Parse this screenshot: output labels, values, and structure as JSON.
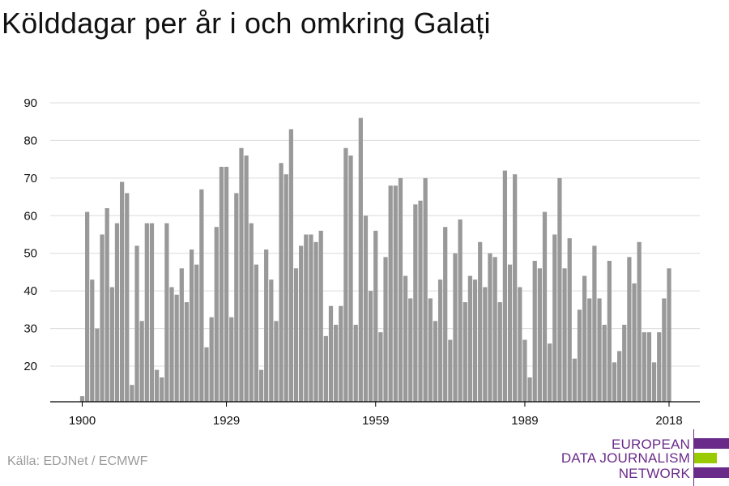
{
  "title": "Kölddagar per år i och omkring Galați",
  "source": "Källa: EDJNet / ECMWF",
  "logo": {
    "line1": "EUROPEAN",
    "line2": "DATA JOURNALISM",
    "line3": "NETWORK",
    "colors": {
      "purple": "#6a2a8a",
      "green": "#99cc00"
    }
  },
  "colors": {
    "bar": "#999999",
    "grid": "#dcdcdc",
    "axis": "#000000",
    "title": "#111111",
    "source": "#9b9b9b"
  },
  "chart_data": {
    "type": "bar",
    "title": "Kölddagar per år i och omkring Galați",
    "xlabel": "",
    "ylabel": "",
    "ylim": [
      12,
      90
    ],
    "yticks": [
      20,
      30,
      40,
      50,
      60,
      70,
      80,
      90
    ],
    "xticks": [
      1900,
      1929,
      1959,
      1989,
      2018
    ],
    "grid": true,
    "x": [
      1900,
      1901,
      1902,
      1903,
      1904,
      1905,
      1906,
      1907,
      1908,
      1909,
      1910,
      1911,
      1912,
      1913,
      1914,
      1915,
      1916,
      1917,
      1918,
      1919,
      1920,
      1921,
      1922,
      1923,
      1924,
      1925,
      1926,
      1927,
      1928,
      1929,
      1930,
      1931,
      1932,
      1933,
      1934,
      1935,
      1936,
      1937,
      1938,
      1939,
      1940,
      1941,
      1942,
      1943,
      1944,
      1945,
      1946,
      1947,
      1948,
      1949,
      1950,
      1951,
      1952,
      1953,
      1954,
      1955,
      1956,
      1957,
      1958,
      1959,
      1960,
      1961,
      1962,
      1963,
      1964,
      1965,
      1966,
      1967,
      1968,
      1969,
      1970,
      1971,
      1972,
      1973,
      1974,
      1975,
      1976,
      1977,
      1978,
      1979,
      1980,
      1981,
      1982,
      1983,
      1984,
      1985,
      1986,
      1987,
      1988,
      1989,
      1990,
      1991,
      1992,
      1993,
      1994,
      1995,
      1996,
      1997,
      1998,
      1999,
      2000,
      2001,
      2002,
      2003,
      2004,
      2005,
      2006,
      2007,
      2008,
      2009,
      2010,
      2011,
      2012,
      2013,
      2014,
      2015,
      2016,
      2017,
      2018
    ],
    "values": [
      12,
      61,
      43,
      30,
      55,
      62,
      41,
      58,
      69,
      66,
      15,
      52,
      32,
      58,
      58,
      19,
      17,
      58,
      41,
      39,
      46,
      37,
      51,
      47,
      67,
      25,
      33,
      57,
      73,
      73,
      33,
      66,
      78,
      76,
      58,
      47,
      19,
      51,
      43,
      32,
      74,
      71,
      83,
      46,
      52,
      55,
      55,
      53,
      56,
      28,
      36,
      31,
      36,
      78,
      76,
      31,
      86,
      60,
      40,
      56,
      29,
      49,
      68,
      68,
      70,
      44,
      38,
      63,
      64,
      70,
      38,
      32,
      43,
      57,
      27,
      50,
      59,
      37,
      44,
      43,
      53,
      41,
      50,
      49,
      37,
      72,
      47,
      71,
      41,
      27,
      17,
      48,
      46,
      61,
      26,
      55,
      70,
      46,
      54,
      22,
      35,
      44,
      38,
      52,
      38,
      31,
      48,
      21,
      24,
      31,
      49,
      42,
      53,
      29,
      29,
      21,
      29,
      38,
      46
    ]
  }
}
